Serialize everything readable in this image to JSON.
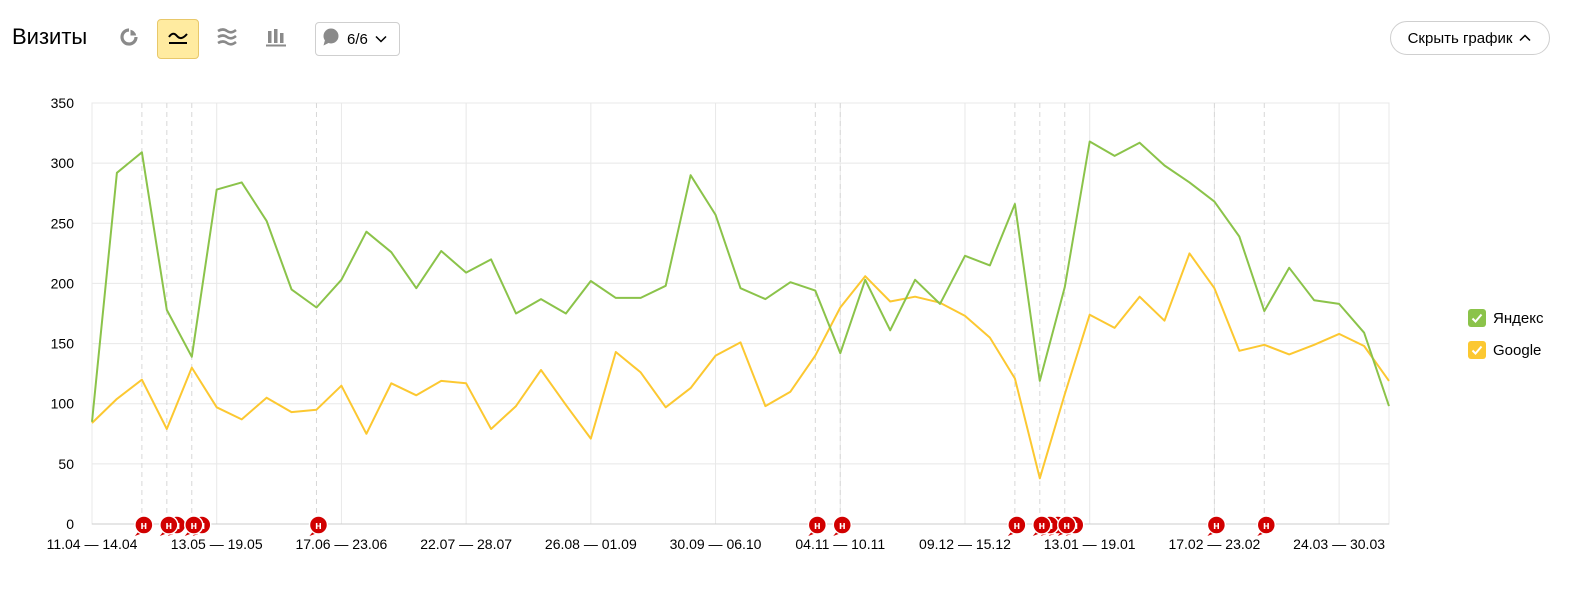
{
  "header": {
    "title": "Визиты",
    "notes_label": "6/6",
    "hide_chart_label": "Скрыть график"
  },
  "toolbar_icons": [
    "pie-chart-icon",
    "line-chart-icon",
    "area-chart-icon",
    "bar-chart-icon",
    "comment-icon",
    "chevron-down-icon",
    "chevron-up-icon"
  ],
  "colors": {
    "yandex": "#8bc34a",
    "google": "#fcc831",
    "active_button": "#ffeba0",
    "annotation": "#d10000",
    "grid": "#e8e8e8"
  },
  "chart_data": {
    "type": "line",
    "title": "Визиты",
    "x_tick_labels": [
      "11.04 — 14.04",
      "13.05 — 19.05",
      "17.06 — 23.06",
      "22.07 — 28.07",
      "26.08 — 01.09",
      "30.09 — 06.10",
      "04.11 — 10.11",
      "09.12 — 15.12",
      "13.01 — 19.01",
      "17.02 — 23.02",
      "24.03 — 30.03"
    ],
    "x_tick_index": [
      0,
      5,
      10,
      15,
      20,
      25,
      30,
      35,
      40,
      45,
      50
    ],
    "y_ticks": [
      0,
      50,
      100,
      150,
      200,
      250,
      300,
      350
    ],
    "ylim": [
      0,
      350
    ],
    "grid": true,
    "legend_position": "right",
    "series": [
      {
        "name": "Яндекс",
        "color": "#8bc34a",
        "values": [
          85,
          292,
          309,
          178,
          139,
          278,
          284,
          252,
          195,
          180,
          203,
          243,
          226,
          196,
          227,
          209,
          220,
          175,
          187,
          175,
          202,
          188,
          188,
          198,
          290,
          257,
          196,
          187,
          201,
          194,
          142,
          203,
          161,
          203,
          183,
          223,
          215,
          266,
          119,
          197,
          318,
          306,
          317,
          298,
          284,
          268,
          239,
          177,
          213,
          186,
          183,
          159,
          98
        ]
      },
      {
        "name": "Google",
        "color": "#fcc831",
        "values": [
          84,
          104,
          120,
          79,
          130,
          97,
          87,
          105,
          93,
          95,
          115,
          75,
          117,
          107,
          119,
          117,
          79,
          98,
          128,
          99,
          71,
          143,
          126,
          97,
          113,
          140,
          151,
          98,
          110,
          140,
          180,
          206,
          185,
          189,
          184,
          173,
          155,
          121,
          38,
          108,
          174,
          163,
          189,
          169,
          225,
          196,
          144,
          149,
          141,
          149,
          158,
          148,
          119
        ]
      }
    ],
    "annotations": [
      {
        "index": 2,
        "label": "н",
        "count": 1
      },
      {
        "index": 3,
        "label": "н",
        "count": 2
      },
      {
        "index": 4,
        "label": "н",
        "count": 2
      },
      {
        "index": 9,
        "label": "н",
        "count": 1
      },
      {
        "index": 29,
        "label": "н",
        "count": 1
      },
      {
        "index": 30,
        "label": "н",
        "count": 1
      },
      {
        "index": 37,
        "label": "н",
        "count": 1
      },
      {
        "index": 38,
        "label": "н",
        "count": 3
      },
      {
        "index": 39,
        "label": "н",
        "count": 2
      },
      {
        "index": 45,
        "label": "н",
        "count": 1
      },
      {
        "index": 47,
        "label": "н",
        "count": 1
      }
    ]
  }
}
